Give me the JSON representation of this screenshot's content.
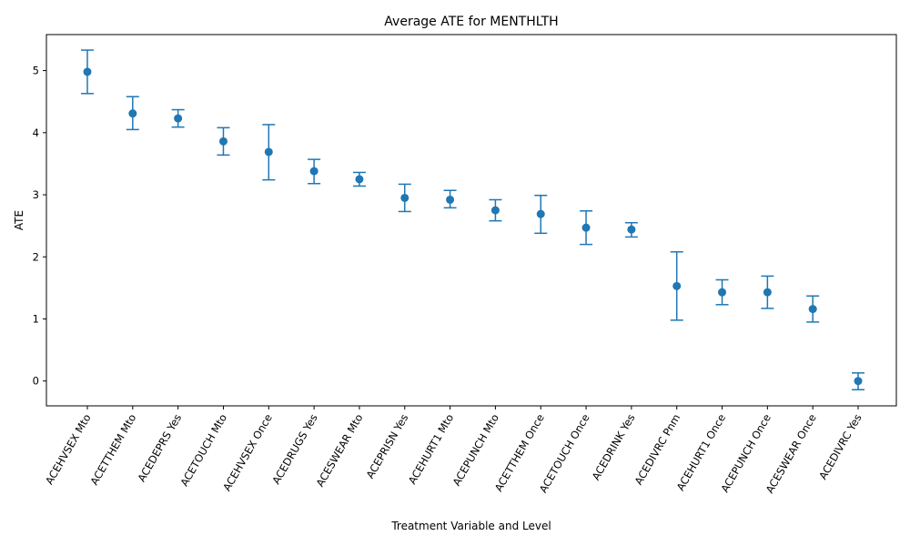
{
  "chart_data": {
    "type": "scatter",
    "title": "Average ATE for MENTHLTH",
    "xlabel": "Treatment Variable and Level",
    "ylabel": "ATE",
    "ylim": [
      -0.4,
      5.58
    ],
    "yticks": [
      0,
      1,
      2,
      3,
      4,
      5
    ],
    "grid": false,
    "color": "#1f77b4",
    "categories": [
      "ACEHVSEX Mto",
      "ACETTHEM Mto",
      "ACEDEPRS Yes",
      "ACETOUCH Mto",
      "ACEHVSEX Once",
      "ACEDRUGS Yes",
      "ACESWEAR Mto",
      "ACEPRISN Yes",
      "ACEHURT1 Mto",
      "ACEPUNCH Mto",
      "ACETTHEM Once",
      "ACETOUCH Once",
      "ACEDRINK Yes",
      "ACEDIVRC Pnm",
      "ACEHURT1 Once",
      "ACEPUNCH Once",
      "ACESWEAR Once",
      "ACEDIVRC Yes"
    ],
    "values": [
      4.98,
      4.31,
      4.23,
      3.86,
      3.69,
      3.38,
      3.25,
      2.95,
      2.92,
      2.75,
      2.69,
      2.47,
      2.44,
      1.53,
      1.43,
      1.43,
      1.16,
      0.0
    ],
    "lower": [
      4.63,
      4.05,
      4.09,
      3.64,
      3.24,
      3.18,
      3.14,
      2.73,
      2.79,
      2.58,
      2.38,
      2.2,
      2.32,
      0.98,
      1.23,
      1.17,
      0.95,
      -0.14
    ],
    "upper": [
      5.33,
      4.58,
      4.37,
      4.08,
      4.13,
      3.57,
      3.36,
      3.17,
      3.07,
      2.92,
      2.99,
      2.74,
      2.55,
      2.08,
      1.63,
      1.69,
      1.37,
      0.13
    ]
  }
}
